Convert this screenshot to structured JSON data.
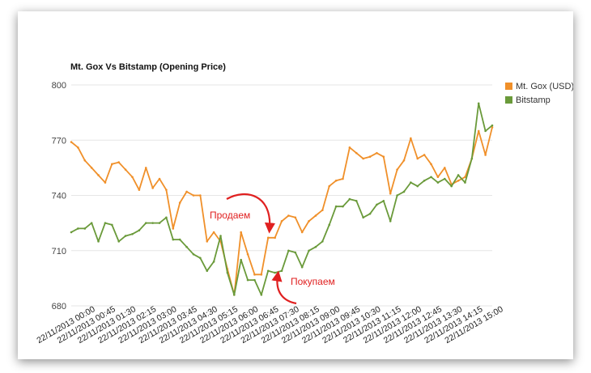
{
  "chart_data": {
    "type": "line",
    "title": "Mt. Gox Vs Bitstamp (Opening Price)",
    "ylim": [
      680,
      800
    ],
    "yticks": [
      680,
      710,
      740,
      770,
      800
    ],
    "grid": true,
    "legend_position": "right",
    "x_tick_labels": [
      "22/11/2013 00:00",
      "22/11/2013 00:45",
      "22/11/2013 01:30",
      "22/11/2013 02:15",
      "22/11/2013 03:00",
      "22/11/2013 03:45",
      "22/11/2013 04:30",
      "22/11/2013 05:15",
      "22/11/2013 06:00",
      "22/11/2013 06:45",
      "22/11/2013 07:30",
      "22/11/2013 08:15",
      "22/11/2013 09:00",
      "22/11/2013 09:45",
      "22/11/2013 10:30",
      "22/11/2013 11:15",
      "22/11/2013 12:00",
      "22/11/2013 12:45",
      "22/11/2013 13:30",
      "22/11/2013 14:15",
      "22/11/2013 15:00"
    ],
    "series": [
      {
        "name": "Mt. Gox (USD)",
        "color": "#f0902a",
        "values": [
          769,
          766,
          759,
          755,
          751,
          747,
          757,
          758,
          754,
          750,
          743,
          755,
          744,
          749,
          743,
          722,
          736,
          742,
          740,
          740,
          715,
          720,
          715,
          700,
          686,
          720,
          708,
          697,
          697,
          717,
          717,
          726,
          729,
          728,
          720,
          726,
          729,
          732,
          745,
          748,
          749,
          766,
          763,
          760,
          761,
          763,
          761,
          741,
          754,
          759,
          771,
          760,
          762,
          757,
          750,
          755,
          746,
          748,
          750,
          760,
          775,
          762,
          777
        ],
        "labels": [
          "22/11/2013 00:00",
          "22/11/2013 00:15",
          "22/11/2013 00:30",
          "22/11/2013 00:45",
          "22/11/2013 01:00",
          "22/11/2013 01:15",
          "22/11/2013 01:30",
          "22/11/2013 01:45",
          "22/11/2013 02:00",
          "22/11/2013 02:15",
          "22/11/2013 02:30",
          "22/11/2013 02:45",
          "22/11/2013 03:00",
          "22/11/2013 03:15",
          "22/11/2013 03:30",
          "22/11/2013 03:45",
          "22/11/2013 04:00",
          "22/11/2013 04:15",
          "22/11/2013 04:30",
          "22/11/2013 04:45",
          "22/11/2013 05:00",
          "22/11/2013 05:15",
          "22/11/2013 05:30",
          "22/11/2013 05:45",
          "22/11/2013 06:00",
          "22/11/2013 06:15",
          "22/11/2013 06:30",
          "22/11/2013 06:45",
          "22/11/2013 07:00",
          "22/11/2013 07:15",
          "22/11/2013 07:30",
          "22/11/2013 07:45",
          "22/11/2013 08:00",
          "22/11/2013 08:15",
          "22/11/2013 08:30",
          "22/11/2013 08:45",
          "22/11/2013 09:00",
          "22/11/2013 09:15",
          "22/11/2013 09:30",
          "22/11/2013 09:45",
          "22/11/2013 10:00",
          "22/11/2013 10:15",
          "22/11/2013 10:30",
          "22/11/2013 10:45",
          "22/11/2013 11:00",
          "22/11/2013 11:15",
          "22/11/2013 11:30",
          "22/11/2013 11:45",
          "22/11/2013 12:00",
          "22/11/2013 12:15",
          "22/11/2013 12:30",
          "22/11/2013 12:45",
          "22/11/2013 13:00",
          "22/11/2013 13:15",
          "22/11/2013 13:30",
          "22/11/2013 13:45",
          "22/11/2013 14:00",
          "22/11/2013 14:15",
          "22/11/2013 14:30",
          "22/11/2013 14:45",
          "22/11/2013 15:00",
          "22/11/2013 15:15",
          "22/11/2013 15:30"
        ]
      },
      {
        "name": "Bitstamp",
        "color": "#6a9a3a",
        "values": [
          720,
          722,
          722,
          725,
          715,
          725,
          724,
          715,
          718,
          719,
          721,
          725,
          725,
          725,
          728,
          716,
          716,
          712,
          708,
          706,
          699,
          704,
          718,
          698,
          686,
          705,
          694,
          694,
          686,
          699,
          698,
          699,
          710,
          709,
          701,
          710,
          712,
          715,
          724,
          734,
          734,
          738,
          737,
          728,
          730,
          735,
          737,
          726,
          740,
          742,
          747,
          745,
          748,
          750,
          747,
          749,
          745,
          751,
          747,
          760,
          790,
          775,
          778
        ],
        "labels": [
          "22/11/2013 00:00",
          "22/11/2013 00:15",
          "22/11/2013 00:30",
          "22/11/2013 00:45",
          "22/11/2013 01:00",
          "22/11/2013 01:15",
          "22/11/2013 01:30",
          "22/11/2013 01:45",
          "22/11/2013 02:00",
          "22/11/2013 02:15",
          "22/11/2013 02:30",
          "22/11/2013 02:45",
          "22/11/2013 03:00",
          "22/11/2013 03:15",
          "22/11/2013 03:30",
          "22/11/2013 03:45",
          "22/11/2013 04:00",
          "22/11/2013 04:15",
          "22/11/2013 04:30",
          "22/11/2013 04:45",
          "22/11/2013 05:00",
          "22/11/2013 05:15",
          "22/11/2013 05:30",
          "22/11/2013 05:45",
          "22/11/2013 06:00",
          "22/11/2013 06:15",
          "22/11/2013 06:30",
          "22/11/2013 06:45",
          "22/11/2013 07:00",
          "22/11/2013 07:15",
          "22/11/2013 07:30",
          "22/11/2013 07:45",
          "22/11/2013 08:00",
          "22/11/2013 08:15",
          "22/11/2013 08:30",
          "22/11/2013 08:45",
          "22/11/2013 09:00",
          "22/11/2013 09:15",
          "22/11/2013 09:30",
          "22/11/2013 09:45",
          "22/11/2013 10:00",
          "22/11/2013 10:15",
          "22/11/2013 10:30",
          "22/11/2013 10:45",
          "22/11/2013 11:00",
          "22/11/2013 11:15",
          "22/11/2013 11:30",
          "22/11/2013 11:45",
          "22/11/2013 12:00",
          "22/11/2013 12:15",
          "22/11/2013 12:30",
          "22/11/2013 12:45",
          "22/11/2013 13:00",
          "22/11/2013 13:15",
          "22/11/2013 13:30",
          "22/11/2013 13:45",
          "22/11/2013 14:00",
          "22/11/2013 14:15",
          "22/11/2013 14:30",
          "22/11/2013 14:45",
          "22/11/2013 15:00",
          "22/11/2013 15:15",
          "22/11/2013 15:30"
        ]
      }
    ],
    "annotations": [
      {
        "text": "Продаем",
        "color": "#e02020"
      },
      {
        "text": "Покупаем",
        "color": "#e02020"
      }
    ]
  }
}
